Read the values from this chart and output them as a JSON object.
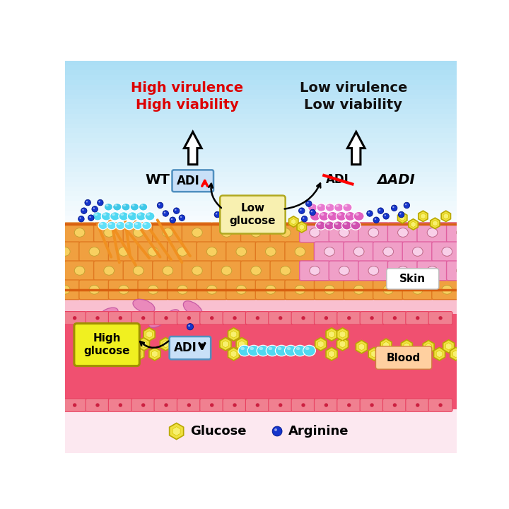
{
  "title_left": "High virulence\nHigh viability",
  "title_right": "Low virulence\nLow viability",
  "title_left_color": "#dd0000",
  "title_right_color": "#111111",
  "wt_label": "WT",
  "delta_adi_label": "ΔADI",
  "low_glucose_label": "Low\nglucose",
  "high_glucose_label": "High\nglucose",
  "blood_label": "Blood",
  "skin_label": "Skin",
  "glucose_legend": "Glucose",
  "arginine_legend": "Arginine",
  "cyan_color": "#50d8f0",
  "magenta_color": "#e060c0",
  "blue_dot_color": "#1535cc",
  "orange_spike_color": "#f08820",
  "skin_cell_color": "#f0a040",
  "skin_cell_edge": "#e07820",
  "skin_body_color": "#f5b060",
  "skin_inner_color": "#f8d060",
  "blood_body_color": "#f05070",
  "blood_cell_color": "#f08090",
  "blood_cell_edge": "#e84060",
  "pink_area_color": "#f9c0d0",
  "legend_bg": "#fce8f0"
}
